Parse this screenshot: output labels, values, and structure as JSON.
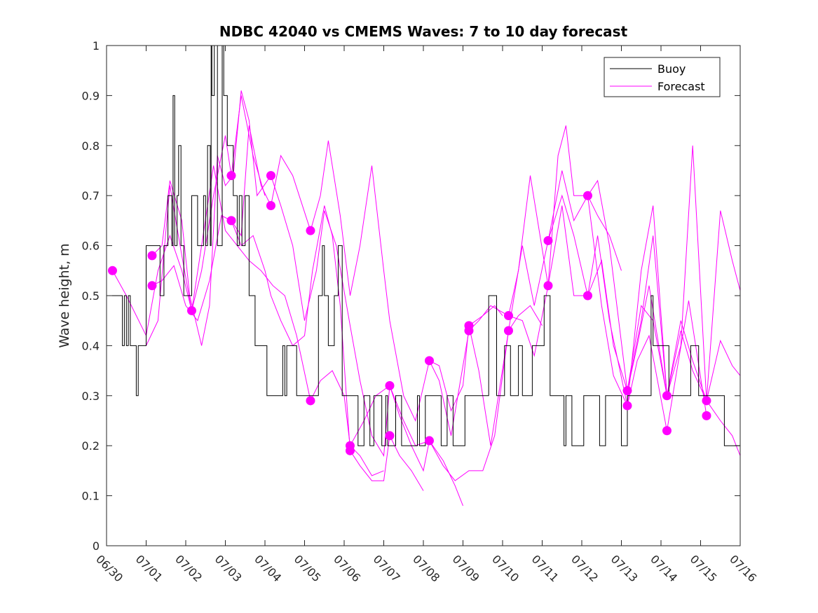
{
  "chart_data": {
    "type": "line",
    "title": "NDBC 42040 vs CMEMS Waves: 7 to 10 day forecast",
    "xlabel": "",
    "ylabel": "Wave height, m",
    "xlim": [
      "06/30",
      "07/16"
    ],
    "x_tick_labels": [
      "06/30",
      "07/01",
      "07/02",
      "07/03",
      "07/04",
      "07/05",
      "07/06",
      "07/07",
      "07/08",
      "07/09",
      "07/10",
      "07/11",
      "07/12",
      "07/13",
      "07/14",
      "07/15",
      "07/16"
    ],
    "ylim": [
      0,
      1
    ],
    "y_ticks": [
      0,
      0.1,
      0.2,
      0.3,
      0.4,
      0.5,
      0.6,
      0.7,
      0.8,
      0.9,
      1
    ],
    "y_tick_labels": [
      "0",
      "0.1",
      "0.2",
      "0.3",
      "0.4",
      "0.5",
      "0.6",
      "0.7",
      "0.8",
      "0.9",
      "1"
    ],
    "grid": false,
    "legend": {
      "position": "top-right",
      "entries": [
        {
          "name": "Buoy",
          "color": "#000000"
        },
        {
          "name": "Forecast",
          "color": "#ff00ff"
        }
      ]
    },
    "colors": {
      "buoy": "#000000",
      "forecast": "#ff00ff"
    },
    "buoy": {
      "x_days": [
        0,
        0.3,
        0.4,
        0.45,
        0.5,
        0.55,
        0.6,
        0.7,
        0.75,
        0.8,
        0.95,
        1.0,
        1.1,
        1.35,
        1.45,
        1.55,
        1.65,
        1.68,
        1.72,
        1.78,
        1.82,
        1.88,
        1.95,
        2.0,
        2.15,
        2.3,
        2.45,
        2.5,
        2.55,
        2.62,
        2.64,
        2.66,
        2.72,
        2.8,
        2.92,
        2.96,
        3.05,
        3.2,
        3.3,
        3.35,
        3.42,
        3.5,
        3.6,
        3.75,
        3.95,
        4.05,
        4.35,
        4.45,
        4.5,
        4.55,
        4.8,
        4.95,
        5.0,
        5.1,
        5.35,
        5.45,
        5.5,
        5.6,
        5.75,
        5.85,
        5.95,
        6.2,
        6.35,
        6.5,
        6.65,
        6.75,
        6.95,
        7.05,
        7.1,
        7.3,
        7.45,
        7.8,
        7.85,
        7.9,
        8.05,
        8.3,
        8.45,
        8.6,
        8.75,
        8.85,
        9.05,
        9.3,
        9.5,
        9.65,
        9.85,
        10.05,
        10.2,
        10.4,
        10.5,
        10.75,
        10.95,
        11.05,
        11.2,
        11.4,
        11.55,
        11.6,
        11.75,
        11.95,
        12.05,
        12.2,
        12.45,
        12.6,
        12.8,
        12.85,
        13.0,
        13.15,
        13.4,
        13.65,
        13.75,
        13.8,
        14.0,
        14.2,
        14.4,
        14.6,
        14.75,
        14.95,
        15.0,
        15.2,
        15.4,
        15.6,
        16.0
      ],
      "y": [
        0.5,
        0.5,
        0.4,
        0.5,
        0.4,
        0.5,
        0.4,
        0.4,
        0.3,
        0.4,
        0.4,
        0.6,
        0.6,
        0.5,
        0.6,
        0.7,
        0.6,
        0.9,
        0.6,
        0.7,
        0.8,
        0.6,
        0.5,
        0.5,
        0.7,
        0.6,
        0.7,
        0.6,
        0.8,
        0.6,
        1.0,
        0.9,
        1.0,
        0.6,
        1.0,
        0.9,
        0.8,
        0.7,
        0.6,
        0.7,
        0.6,
        0.7,
        0.5,
        0.4,
        0.4,
        0.3,
        0.3,
        0.4,
        0.3,
        0.4,
        0.3,
        0.3,
        0.3,
        0.3,
        0.5,
        0.6,
        0.5,
        0.4,
        0.5,
        0.6,
        0.3,
        0.3,
        0.2,
        0.3,
        0.2,
        0.3,
        0.2,
        0.3,
        0.2,
        0.3,
        0.2,
        0.2,
        0.3,
        0.2,
        0.3,
        0.3,
        0.2,
        0.3,
        0.2,
        0.2,
        0.3,
        0.3,
        0.3,
        0.5,
        0.3,
        0.4,
        0.3,
        0.4,
        0.3,
        0.4,
        0.4,
        0.5,
        0.3,
        0.3,
        0.2,
        0.3,
        0.2,
        0.2,
        0.3,
        0.3,
        0.2,
        0.3,
        0.3,
        0.3,
        0.2,
        0.3,
        0.3,
        0.3,
        0.5,
        0.4,
        0.4,
        0.3,
        0.3,
        0.3,
        0.4,
        0.3,
        0.3,
        0.3,
        0.3,
        0.2,
        0.2
      ]
    },
    "forecast_markers": [
      {
        "x_days": 0.15,
        "y": 0.55
      },
      {
        "x_days": 1.15,
        "y": 0.58
      },
      {
        "x_days": 1.15,
        "y": 0.52
      },
      {
        "x_days": 2.15,
        "y": 0.47
      },
      {
        "x_days": 3.15,
        "y": 0.74
      },
      {
        "x_days": 3.15,
        "y": 0.65
      },
      {
        "x_days": 4.15,
        "y": 0.74
      },
      {
        "x_days": 4.15,
        "y": 0.68
      },
      {
        "x_days": 5.15,
        "y": 0.63
      },
      {
        "x_days": 5.15,
        "y": 0.29
      },
      {
        "x_days": 6.15,
        "y": 0.2
      },
      {
        "x_days": 6.15,
        "y": 0.19
      },
      {
        "x_days": 7.15,
        "y": 0.32
      },
      {
        "x_days": 7.15,
        "y": 0.22
      },
      {
        "x_days": 8.15,
        "y": 0.37
      },
      {
        "x_days": 8.15,
        "y": 0.21
      },
      {
        "x_days": 9.15,
        "y": 0.44
      },
      {
        "x_days": 9.15,
        "y": 0.43
      },
      {
        "x_days": 10.15,
        "y": 0.46
      },
      {
        "x_days": 10.15,
        "y": 0.43
      },
      {
        "x_days": 11.15,
        "y": 0.61
      },
      {
        "x_days": 11.15,
        "y": 0.52
      },
      {
        "x_days": 12.15,
        "y": 0.7
      },
      {
        "x_days": 12.15,
        "y": 0.5
      },
      {
        "x_days": 13.15,
        "y": 0.31
      },
      {
        "x_days": 13.15,
        "y": 0.28
      },
      {
        "x_days": 14.15,
        "y": 0.3
      },
      {
        "x_days": 14.15,
        "y": 0.23
      },
      {
        "x_days": 15.15,
        "y": 0.29
      },
      {
        "x_days": 15.15,
        "y": 0.26
      }
    ],
    "forecast_series": [
      {
        "x_days": [
          0.15,
          0.5,
          1.0,
          1.3,
          1.6,
          1.9,
          2.15,
          2.4,
          2.7,
          3.0,
          3.15,
          3.4,
          3.7,
          4.0
        ],
        "y": [
          0.55,
          0.5,
          0.42,
          0.55,
          0.62,
          0.55,
          0.47,
          0.55,
          0.7,
          0.82,
          0.74,
          0.9,
          0.78,
          0.7
        ]
      },
      {
        "x_days": [
          1.15,
          1.4,
          1.6,
          1.9,
          2.1,
          2.4,
          2.6,
          2.8,
          3.0,
          3.2,
          3.4,
          3.6,
          3.8,
          4.15
        ],
        "y": [
          0.58,
          0.6,
          0.73,
          0.65,
          0.5,
          0.4,
          0.48,
          0.78,
          0.72,
          0.74,
          0.91,
          0.85,
          0.7,
          0.74
        ]
      },
      {
        "x_days": [
          1.15,
          1.4,
          1.7,
          2.0,
          2.3,
          2.6,
          2.9,
          3.15,
          3.4,
          3.6,
          3.9,
          4.15,
          4.4,
          4.7,
          5.15
        ],
        "y": [
          0.52,
          0.53,
          0.56,
          0.48,
          0.45,
          0.53,
          0.66,
          0.65,
          0.62,
          0.84,
          0.72,
          0.68,
          0.78,
          0.74,
          0.63
        ]
      },
      {
        "x_days": [
          1.0,
          1.3,
          1.6,
          1.9,
          2.15,
          2.4,
          2.7,
          3.0,
          3.3,
          3.6,
          3.9,
          4.2,
          4.5,
          4.8,
          5.15,
          5.4,
          5.7,
          6.0,
          6.15,
          6.4,
          6.7,
          7.0
        ],
        "y": [
          0.4,
          0.45,
          0.72,
          0.58,
          0.47,
          0.6,
          0.76,
          0.63,
          0.6,
          0.57,
          0.55,
          0.52,
          0.5,
          0.42,
          0.29,
          0.33,
          0.35,
          0.3,
          0.2,
          0.18,
          0.14,
          0.15
        ]
      },
      {
        "x_days": [
          3.15,
          3.4,
          3.7,
          4.0,
          4.15,
          4.4,
          4.7,
          5.0,
          5.2,
          5.5,
          5.7,
          5.9,
          6.15,
          6.4,
          6.7,
          7.0,
          7.15,
          7.4,
          7.7,
          8.0
        ],
        "y": [
          0.65,
          0.6,
          0.62,
          0.55,
          0.5,
          0.45,
          0.4,
          0.42,
          0.55,
          0.68,
          0.62,
          0.48,
          0.19,
          0.16,
          0.13,
          0.13,
          0.22,
          0.18,
          0.15,
          0.11
        ]
      },
      {
        "x_days": [
          4.15,
          4.4,
          4.7,
          5.0,
          5.3,
          5.5,
          5.8,
          6.15,
          6.4,
          6.7,
          7.0,
          7.15,
          7.4,
          7.7,
          8.0,
          8.15,
          8.5,
          8.8,
          9.0
        ],
        "y": [
          0.74,
          0.68,
          0.6,
          0.45,
          0.55,
          0.67,
          0.6,
          0.44,
          0.33,
          0.22,
          0.18,
          0.32,
          0.26,
          0.2,
          0.15,
          0.21,
          0.17,
          0.12,
          0.08
        ]
      },
      {
        "x_days": [
          5.15,
          5.4,
          5.6,
          5.9,
          6.15,
          6.4,
          6.7,
          7.0,
          7.15,
          7.5,
          7.8,
          8.15,
          8.4,
          8.7,
          9.0,
          9.15,
          9.5,
          9.8,
          10.0
        ],
        "y": [
          0.63,
          0.7,
          0.81,
          0.66,
          0.5,
          0.6,
          0.76,
          0.55,
          0.45,
          0.3,
          0.25,
          0.37,
          0.36,
          0.27,
          0.32,
          0.44,
          0.46,
          0.48,
          0.46
        ]
      },
      {
        "x_days": [
          6.15,
          6.5,
          6.8,
          7.15,
          7.5,
          7.8,
          8.15,
          8.5,
          8.8,
          9.15,
          9.5,
          9.8,
          10.15,
          10.4,
          10.7,
          11.0
        ],
        "y": [
          0.2,
          0.25,
          0.3,
          0.32,
          0.25,
          0.2,
          0.21,
          0.16,
          0.13,
          0.15,
          0.15,
          0.22,
          0.43,
          0.46,
          0.48,
          0.44
        ]
      },
      {
        "x_days": [
          8.15,
          8.4,
          8.7,
          9.15,
          9.4,
          9.7,
          10.15,
          10.4,
          10.7,
          11.15,
          11.4,
          11.6,
          11.8,
          12.15,
          12.4,
          12.7,
          13.0
        ],
        "y": [
          0.37,
          0.33,
          0.22,
          0.43,
          0.45,
          0.48,
          0.46,
          0.55,
          0.74,
          0.52,
          0.78,
          0.84,
          0.7,
          0.7,
          0.66,
          0.62,
          0.55
        ]
      },
      {
        "x_days": [
          9.15,
          9.4,
          9.7,
          10.15,
          10.5,
          10.8,
          11.15,
          11.5,
          11.8,
          12.15,
          12.4,
          12.7,
          13.15,
          13.4,
          13.7,
          14.15
        ],
        "y": [
          0.44,
          0.35,
          0.2,
          0.43,
          0.6,
          0.48,
          0.61,
          0.75,
          0.65,
          0.7,
          0.73,
          0.6,
          0.31,
          0.4,
          0.52,
          0.3
        ]
      },
      {
        "x_days": [
          10.15,
          10.5,
          10.8,
          11.15,
          11.5,
          11.8,
          12.15,
          12.4,
          12.7,
          13.15,
          13.4,
          13.7,
          14.15,
          14.4,
          14.7,
          15.15
        ],
        "y": [
          0.46,
          0.45,
          0.38,
          0.52,
          0.68,
          0.5,
          0.5,
          0.62,
          0.45,
          0.28,
          0.37,
          0.42,
          0.23,
          0.35,
          0.49,
          0.26
        ]
      },
      {
        "x_days": [
          11.15,
          11.5,
          11.8,
          12.15,
          12.5,
          12.8,
          13.15,
          13.5,
          13.8,
          14.15,
          14.5,
          14.8,
          15.15,
          15.5,
          15.8,
          16.0
        ],
        "y": [
          0.61,
          0.7,
          0.62,
          0.5,
          0.57,
          0.4,
          0.31,
          0.48,
          0.45,
          0.3,
          0.4,
          0.8,
          0.29,
          0.25,
          0.22,
          0.18
        ]
      },
      {
        "x_days": [
          12.15,
          12.5,
          12.8,
          13.15,
          13.5,
          13.8,
          14.15,
          14.5,
          14.8,
          15.15,
          15.5,
          15.8,
          16.0
        ],
        "y": [
          0.7,
          0.48,
          0.34,
          0.28,
          0.55,
          0.68,
          0.3,
          0.45,
          0.37,
          0.29,
          0.67,
          0.57,
          0.51
        ]
      },
      {
        "x_days": [
          13.15,
          13.5,
          13.8,
          14.15,
          14.5,
          14.8,
          15.15,
          15.5,
          15.8,
          16.0
        ],
        "y": [
          0.31,
          0.45,
          0.62,
          0.3,
          0.43,
          0.35,
          0.29,
          0.41,
          0.36,
          0.34
        ]
      }
    ]
  }
}
